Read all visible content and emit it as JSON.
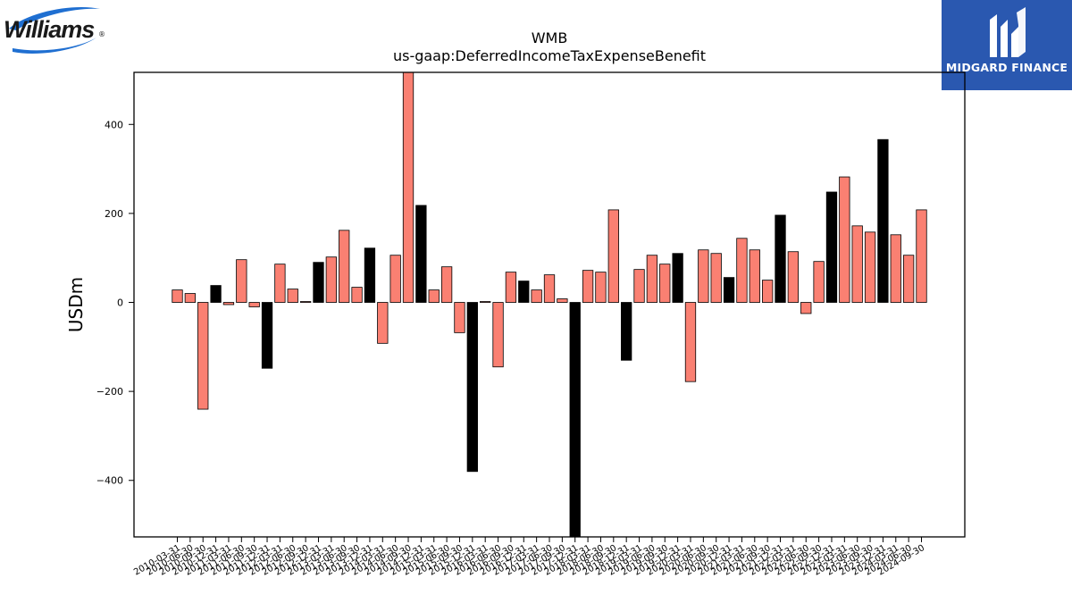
{
  "logos": {
    "left": {
      "text": "Williams",
      "mark": "®",
      "icon": "williams-swoosh-logo",
      "color": "#1f6fd1"
    },
    "right": {
      "text": "MIDGARD FINANCE",
      "icon": "midgard-m-logo",
      "background": "#2a58b0"
    }
  },
  "chart_data": {
    "type": "bar",
    "title": "WMB",
    "subtitle": "us-gaap:DeferredIncomeTaxExpenseBenefit",
    "xlabel": "",
    "ylabel": "USDm",
    "ylim": [
      -527,
      517
    ],
    "yticks": [
      -400,
      -200,
      0,
      200,
      400
    ],
    "grid": false,
    "colors": {
      "default": "#fa8072",
      "highlight": "#000000",
      "edge": "#000000"
    },
    "categories": [
      "2010-03-31",
      "2010-06-30",
      "2010-09-30",
      "2010-12-31",
      "2011-03-31",
      "2011-06-30",
      "2011-09-30",
      "2011-12-31",
      "2012-03-31",
      "2012-06-30",
      "2012-09-30",
      "2012-12-31",
      "2013-03-31",
      "2013-06-30",
      "2013-09-30",
      "2013-12-31",
      "2014-03-31",
      "2014-06-30",
      "2014-09-30",
      "2014-12-31",
      "2015-03-31",
      "2015-06-30",
      "2015-09-30",
      "2015-12-31",
      "2016-03-31",
      "2016-06-30",
      "2016-09-30",
      "2016-12-31",
      "2017-03-31",
      "2017-06-30",
      "2017-09-30",
      "2017-12-31",
      "2018-03-31",
      "2018-06-30",
      "2018-09-30",
      "2018-12-31",
      "2019-03-31",
      "2019-06-30",
      "2019-09-30",
      "2019-12-31",
      "2020-03-31",
      "2020-06-30",
      "2020-09-30",
      "2020-12-31",
      "2021-03-31",
      "2021-06-30",
      "2021-09-30",
      "2021-12-31",
      "2022-03-31",
      "2022-06-30",
      "2022-09-30",
      "2022-12-31",
      "2023-03-31",
      "2023-06-30",
      "2023-09-30",
      "2023-12-31",
      "2024-03-31",
      "2024-06-30",
      "2024-09-30"
    ],
    "values": [
      28,
      20,
      -240,
      38,
      -5,
      96,
      -10,
      -148,
      86,
      30,
      2,
      90,
      102,
      162,
      34,
      122,
      -92,
      106,
      530,
      218,
      28,
      80,
      -68,
      -380,
      2,
      -145,
      68,
      48,
      28,
      62,
      8,
      -530,
      72,
      68,
      208,
      -130,
      74,
      106,
      86,
      110,
      -178,
      118,
      110,
      56,
      144,
      118,
      50,
      196,
      114,
      -25,
      92,
      248,
      282,
      172,
      158,
      366,
      152,
      106,
      208
    ],
    "highlight_indices": [
      3,
      7,
      11,
      15,
      19,
      23,
      27,
      31,
      35,
      39,
      43,
      47,
      51,
      55
    ]
  }
}
